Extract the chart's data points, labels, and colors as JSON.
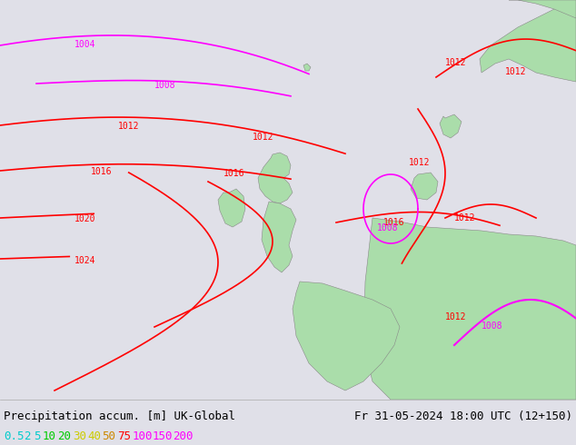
{
  "title_left": "Precipitation accum. [m] UK-Global",
  "title_right": "Fr 31-05-2024 18:00 UTC (12+150)",
  "legend_values": [
    "0.5",
    "2",
    "5",
    "10",
    "20",
    "30",
    "40",
    "50",
    "75",
    "100",
    "150",
    "200"
  ],
  "legend_colors": [
    "#00cccc",
    "#00cccc",
    "#00cccc",
    "#00cc00",
    "#00cc00",
    "#cccc00",
    "#cccc00",
    "#cc8800",
    "#ff0000",
    "#ff00ff",
    "#ff00ff",
    "#ff00ff"
  ],
  "bg_color": "#e0e0e8",
  "map_bg": "#e0e0e8",
  "land_color": "#aaddaa",
  "border_color": "#888888",
  "text_color": "#000000",
  "font_size_title": 9,
  "font_size_legend": 9,
  "isobar_magenta": "#ff00ff",
  "isobar_red": "#ff0000",
  "isobar_dark": "#333333"
}
